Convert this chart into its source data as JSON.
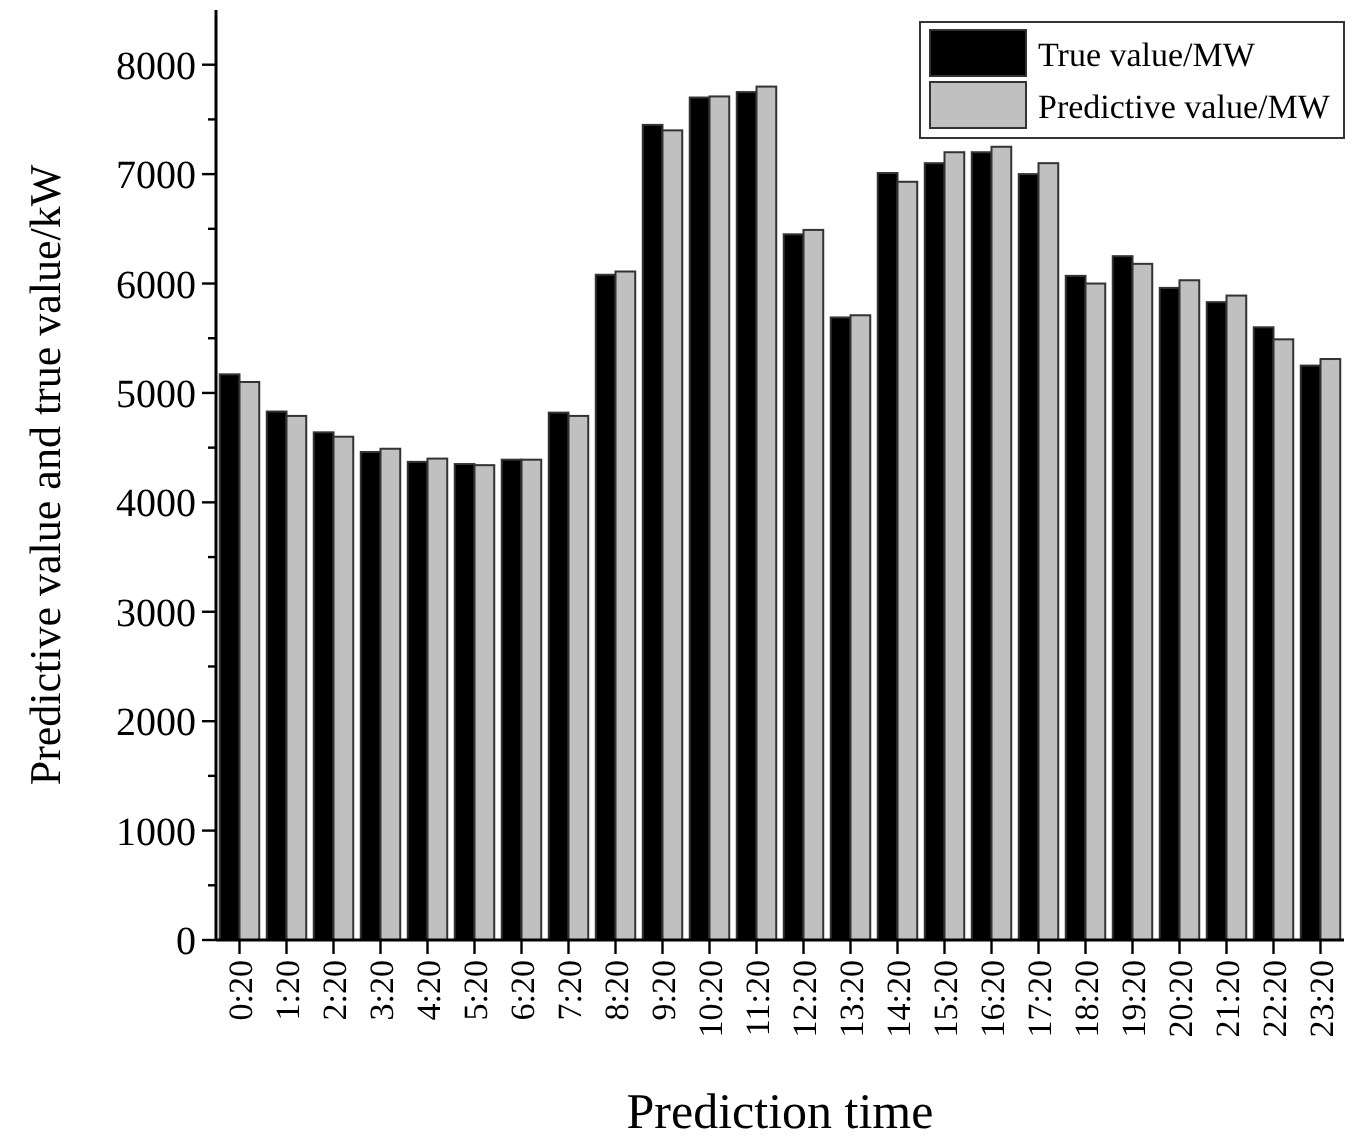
{
  "chart_data": {
    "type": "bar",
    "xlabel": "Prediction time",
    "ylabel": "Predictive value and true value/kW",
    "categories": [
      "0:20",
      "1:20",
      "2:20",
      "3:20",
      "4:20",
      "5:20",
      "6:20",
      "7:20",
      "8:20",
      "9:20",
      "10:20",
      "11:20",
      "12:20",
      "13:20",
      "14:20",
      "15:20",
      "16:20",
      "17:20",
      "18:20",
      "19:20",
      "20:20",
      "21:20",
      "22:20",
      "23:20"
    ],
    "series": [
      {
        "name": "True value/MW",
        "color": "#000000",
        "values": [
          5170,
          4830,
          4640,
          4460,
          4370,
          4350,
          4390,
          4820,
          6080,
          7450,
          7700,
          7750,
          6450,
          5690,
          7010,
          7100,
          7200,
          7000,
          6070,
          6250,
          5960,
          5830,
          5600,
          5250
        ]
      },
      {
        "name": "Predictive value/MW",
        "color": "#c0c0c0",
        "values": [
          5100,
          4790,
          4600,
          4490,
          4400,
          4340,
          4390,
          4790,
          6110,
          7400,
          7710,
          7800,
          6490,
          5710,
          6930,
          7200,
          7250,
          7100,
          6000,
          6180,
          6030,
          5890,
          5490,
          5310
        ]
      }
    ],
    "ylim": [
      0,
      8500
    ],
    "yticks": [
      0,
      {
        "value": 500,
        "label": null
      },
      1000,
      {
        "value": 1500,
        "label": null
      },
      2000,
      {
        "value": 2500,
        "label": null
      },
      3000,
      {
        "value": 3500,
        "label": null
      },
      4000,
      {
        "value": 4500,
        "label": null
      },
      5000,
      {
        "value": 5500,
        "label": null
      },
      6000,
      {
        "value": 6500,
        "label": null
      },
      7000,
      {
        "value": 7500,
        "label": null
      },
      8000
    ],
    "legend": "top right",
    "grid": false
  }
}
